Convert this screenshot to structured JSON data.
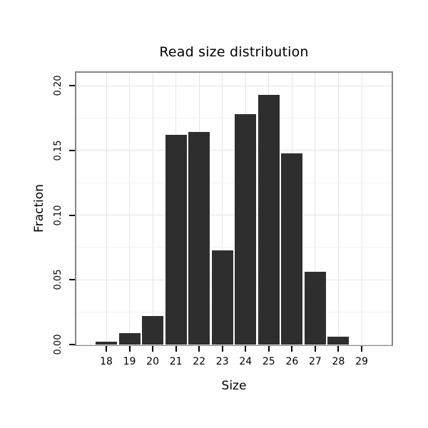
{
  "chart_data": {
    "type": "bar",
    "title": "Read size distribution",
    "xlabel": "Size",
    "ylabel": "Fraction",
    "categories": [
      "18",
      "19",
      "20",
      "21",
      "22",
      "23",
      "24",
      "25",
      "26",
      "27",
      "28",
      "29"
    ],
    "values": [
      0.002,
      0.009,
      0.022,
      0.162,
      0.164,
      0.073,
      0.178,
      0.193,
      0.148,
      0.056,
      0.006,
      0.0
    ],
    "y_ticks": [
      0.0,
      0.05,
      0.1,
      0.15,
      0.2
    ],
    "y_tick_labels": [
      "0.00",
      "0.05",
      "0.10",
      "0.15",
      "0.20"
    ],
    "ylim": [
      0,
      0.21
    ],
    "legend": null,
    "grid": true,
    "bar_color": "#2e2e2e",
    "grid_color_major": "#e4e4e4",
    "grid_color_minor": "#f1f1f1",
    "panel_border_color": "#858585",
    "background_color": "#ffffff"
  }
}
